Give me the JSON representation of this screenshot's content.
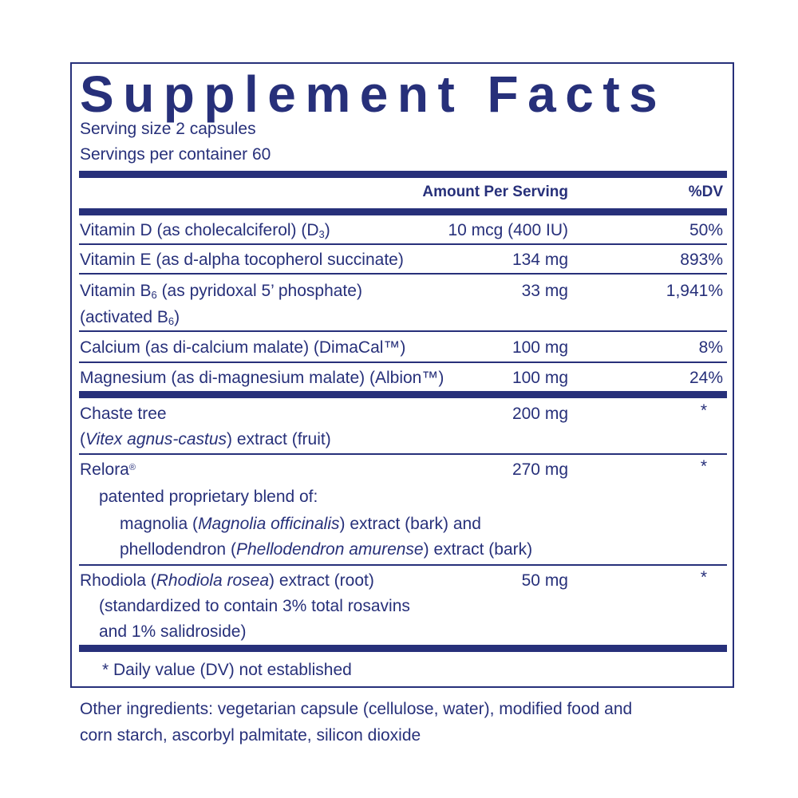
{
  "title": "Supplement Facts",
  "serving_size": "Serving size  2 capsules",
  "servings_per_container": "Servings per container  60",
  "header": {
    "amount": "Amount Per Serving",
    "dv": "%DV"
  },
  "rows": [
    {
      "name": "Vitamin D (as cholecalciferol) (D",
      "sub": "3",
      "name_end": ")",
      "amount": "10 mcg (400 IU)",
      "dv": "50%"
    },
    {
      "name": "Vitamin E (as d-alpha tocopherol succinate)",
      "amount": "134 mg",
      "dv": "893%"
    },
    {
      "name": "Vitamin B",
      "sub": "6",
      "name_end": " (as pyridoxal 5’ phosphate)",
      "line2": "(activated B",
      "line2_sub": "6",
      "line2_end": ")",
      "amount": "33 mg",
      "dv": "1,941%"
    },
    {
      "name": "Calcium (as di-calcium malate) (DimaCal™)",
      "amount": "100 mg",
      "dv": "8%"
    },
    {
      "name": "Magnesium (as di-magnesium malate) (Albion™)",
      "amount": "100 mg",
      "dv": "24%"
    },
    {
      "name": "Chaste tree",
      "line2_italic": "Vitex agnus-castus",
      "line2_end": ") extract (fruit)",
      "line2_start": "(",
      "amount": "200 mg",
      "dv": "*"
    },
    {
      "name": "Relora",
      "mark": "®",
      "line2": "patented proprietary blend of:",
      "line3_a": "magnolia (",
      "line3_i": "Magnolia officinalis",
      "line3_b": ") extract (bark) and",
      "line4_a": "phellodendron (",
      "line4_i": "Phellodendron amurense",
      "line4_b": ") extract (bark)",
      "amount": "270 mg",
      "dv": "*"
    },
    {
      "name_a": "Rhodiola (",
      "name_i": "Rhodiola rosea",
      "name_b": ") extract (root)",
      "line2": "(standardized to contain 3% total rosavins",
      "line3": "and 1% salidroside)",
      "amount": "50 mg",
      "dv": "*"
    }
  ],
  "footnote": "* Daily value (DV) not established",
  "other_ingredients": [
    "Other ingredients: vegetarian capsule (cellulose, water), modified food and",
    "corn starch, ascorbyl palmitate, silicon dioxide"
  ],
  "colors": {
    "ink": "#27307a"
  }
}
